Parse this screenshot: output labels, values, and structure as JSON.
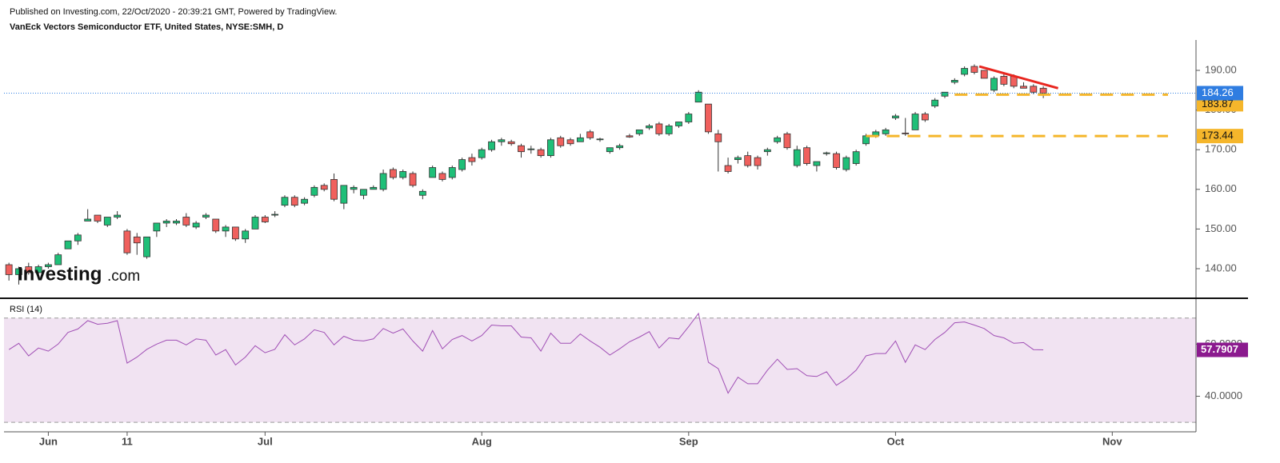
{
  "chart_data": [
    {
      "type": "candlestick",
      "subtitle": "Published on Investing.com, 22/Oct/2020 - 20:39:21 GMT, Powered by TradingView.",
      "title": "VanEck Vectors Semiconductor ETF, United States, NYSE:SMH, D",
      "watermark": {
        "name": "Investing",
        "suffix": ".com"
      },
      "categories": [
        null,
        null,
        null,
        null,
        "Jun",
        null,
        null,
        null,
        null,
        null,
        null,
        null,
        "11",
        null,
        null,
        null,
        null,
        null,
        null,
        null,
        null,
        null,
        null,
        null,
        null,
        null,
        "Jul",
        null,
        null,
        null,
        null,
        null,
        null,
        null,
        null,
        null,
        null,
        null,
        null,
        null,
        null,
        null,
        null,
        null,
        null,
        null,
        null,
        null,
        "Aug",
        null,
        null,
        null,
        null,
        null,
        null,
        null,
        null,
        null,
        null,
        null,
        null,
        null,
        null,
        null,
        null,
        null,
        null,
        null,
        null,
        "Sep",
        null,
        null,
        null,
        null,
        null,
        null,
        null,
        null,
        null,
        null,
        null,
        null,
        null,
        null,
        null,
        null,
        null,
        null,
        null,
        null,
        "Oct",
        null,
        null,
        null,
        null,
        null,
        null,
        null,
        null,
        null,
        null,
        null,
        null,
        null,
        null,
        null,
        null,
        null,
        null,
        null,
        null,
        null,
        "Nov",
        null,
        null,
        null,
        null,
        null,
        null,
        null,
        null
      ],
      "open": [
        141,
        138.5,
        140.5,
        139,
        140.5,
        141,
        145,
        147,
        152,
        153.5,
        151,
        153,
        149.5,
        148,
        143,
        149.5,
        151.5,
        151.5,
        153,
        150.5,
        153,
        152.5,
        149.5,
        150.5,
        147.5,
        150,
        153,
        153.5,
        156,
        158,
        156.5,
        158.5,
        161,
        162.5,
        156.5,
        160,
        158.5,
        160,
        160,
        165,
        163,
        164,
        158.5,
        163,
        164,
        163,
        165,
        168,
        168,
        170,
        172,
        172,
        171,
        170,
        170,
        168.5,
        173,
        172.5,
        172,
        174.5,
        172.5,
        169.5,
        170.5,
        173.5,
        174,
        175.5,
        176.5,
        174,
        176,
        177,
        182,
        181.5,
        174,
        166,
        167.5,
        168.5,
        168,
        169.5,
        172,
        174,
        166,
        170.5,
        166,
        169,
        169,
        165,
        166.5,
        171.5,
        173.5,
        174,
        178,
        174.2,
        175,
        179,
        181,
        183.5,
        187,
        189,
        191,
        190,
        185,
        188.5,
        188.5,
        186,
        186,
        185.5,
        null,
        null,
        null,
        null,
        null,
        null,
        null,
        null,
        null,
        null,
        null,
        null,
        null,
        null,
        null
      ],
      "high": [
        141.5,
        140.5,
        141.5,
        141,
        141.5,
        144,
        147,
        149,
        155,
        153.5,
        153,
        154.5,
        150,
        149,
        148,
        151.5,
        152.5,
        152.5,
        154,
        152,
        154,
        152.5,
        151,
        150.5,
        150,
        153.5,
        153.5,
        154.5,
        158.5,
        158.5,
        158,
        161,
        161.5,
        164,
        161,
        161,
        160,
        161,
        165,
        165.5,
        165,
        164.5,
        160,
        166,
        164.5,
        166,
        168,
        169,
        170.5,
        172.5,
        173,
        172.5,
        171.5,
        171,
        170.5,
        173,
        173.5,
        173,
        174,
        175,
        173,
        170.5,
        171.5,
        174,
        175,
        176.5,
        177,
        176.5,
        177,
        179.5,
        185,
        181.5,
        175,
        168,
        168.5,
        169.5,
        168.5,
        170.5,
        173.5,
        174.5,
        171,
        171,
        167,
        169.5,
        169.5,
        168.5,
        170,
        174,
        175,
        175.5,
        179,
        178,
        179.5,
        179.5,
        183,
        184.5,
        188,
        191,
        191.5,
        190,
        188.5,
        189,
        189,
        187,
        186.5,
        186,
        null,
        null,
        null,
        null,
        null,
        null,
        null,
        null,
        null,
        null,
        null,
        null,
        null,
        null,
        null
      ],
      "low": [
        137,
        136,
        138.5,
        138,
        140,
        141,
        145,
        146,
        152,
        151.5,
        150.5,
        152.5,
        143.5,
        143.5,
        142.5,
        148,
        150.5,
        151,
        150.5,
        150,
        152.5,
        149,
        148,
        147,
        146.5,
        150,
        151.5,
        153,
        155.5,
        155.5,
        156,
        158,
        159.5,
        157,
        155,
        159,
        157.5,
        160,
        159.5,
        162.5,
        162.5,
        160.5,
        157.5,
        163,
        162,
        162.5,
        164.5,
        166,
        167.5,
        169.5,
        171,
        171,
        168,
        169,
        168,
        168,
        170.5,
        171,
        172,
        172.5,
        172,
        169,
        170,
        173,
        173.5,
        175,
        173.5,
        173.5,
        175.5,
        176.5,
        182,
        174,
        164.5,
        164,
        166.5,
        165.5,
        165,
        168.5,
        171.5,
        170,
        165.5,
        166,
        164.5,
        168.5,
        165,
        164.5,
        166,
        171,
        173,
        173.5,
        177.5,
        173.5,
        175,
        177,
        180.5,
        183,
        186.5,
        188.5,
        189,
        188,
        184.5,
        186,
        185.5,
        185.5,
        184,
        183,
        null,
        null,
        null,
        null,
        null,
        null,
        null,
        null,
        null,
        null,
        null,
        null,
        null,
        null,
        null
      ],
      "close": [
        138.5,
        140,
        139,
        140.5,
        141,
        143.5,
        147,
        148.5,
        152.5,
        152,
        153,
        153.5,
        144,
        146.5,
        148,
        151.5,
        152,
        152,
        151,
        151.5,
        153.5,
        149.5,
        150.5,
        147.5,
        149.5,
        153,
        151.8,
        153.7,
        158,
        156,
        157.5,
        160.5,
        160,
        157.5,
        161,
        160.5,
        160,
        160.5,
        164,
        163,
        164.5,
        161,
        159.5,
        165.5,
        162.5,
        165.5,
        167.5,
        167,
        170,
        172,
        172.5,
        171.5,
        169.5,
        170.2,
        168.5,
        172.5,
        171,
        171.5,
        173,
        173,
        172.7,
        170.5,
        171,
        173.2,
        175,
        176,
        174,
        176,
        177,
        179,
        184.5,
        174.5,
        172,
        164.5,
        168,
        166,
        166,
        170,
        173,
        170.5,
        170,
        166.5,
        167,
        169.2,
        165.5,
        168,
        169.5,
        173.5,
        174.5,
        175,
        178.5,
        174,
        179,
        177.5,
        182.5,
        184.5,
        187.5,
        190.5,
        189.5,
        188,
        188,
        186.5,
        186,
        185.5,
        184.5,
        184.26,
        null,
        null,
        null,
        null,
        null,
        null,
        null,
        null,
        null,
        null,
        null,
        null,
        null,
        null,
        null
      ],
      "colors": {
        "up": "#1fbf78",
        "down": "#f0605d"
      },
      "last_line_color": "#2f7de1",
      "levels": [
        {
          "value": 183.87,
          "color": "#f5b62b"
        },
        {
          "value": 173.44,
          "color": "#f5b62b"
        }
      ],
      "trendline": {
        "values": [
          191,
          185.5
        ],
        "color": "#e8261f"
      },
      "ylim": [
        132.74,
        197.66
      ],
      "yticks": [
        {
          "value": 140,
          "label": "140.00"
        },
        {
          "value": 150,
          "label": "150.00"
        },
        {
          "value": 160,
          "label": "160.00"
        },
        {
          "value": 170,
          "label": "170.00"
        },
        {
          "value": 180,
          "label": "180.00"
        },
        {
          "value": 190,
          "label": "190.00"
        }
      ]
    },
    {
      "type": "line",
      "title": "RSI (14)",
      "values": [
        57.9,
        60.3,
        55.5,
        58.5,
        57.3,
        60,
        64.5,
        65.8,
        69,
        67.6,
        68,
        69,
        52.7,
        55,
        58,
        60,
        61.5,
        61.5,
        59.7,
        62,
        61.5,
        55.8,
        57.9,
        52,
        55,
        59.4,
        56.7,
        58,
        63.6,
        59.7,
        62,
        65.5,
        64.5,
        59.7,
        63,
        61.5,
        61.2,
        62,
        66,
        64.2,
        65.8,
        61.2,
        57.3,
        65.2,
        58.2,
        61.8,
        63.3,
        61.2,
        63.3,
        67.3,
        67,
        67,
        62.7,
        62.4,
        57.3,
        64.2,
        60.3,
        60.3,
        63.9,
        61.2,
        58.8,
        55.8,
        58.2,
        60.9,
        62.7,
        64.8,
        58.5,
        62.4,
        62,
        66.7,
        71.8,
        53,
        50.6,
        41.2,
        47.3,
        44.8,
        44.8,
        50,
        54.2,
        50.3,
        50.6,
        47.9,
        47.6,
        49.4,
        44.2,
        46.7,
        50,
        55.5,
        56.4,
        56.4,
        61.2,
        53,
        59.7,
        57.9,
        61.8,
        64.5,
        68.2,
        68.5,
        67.3,
        66,
        63.3,
        62.4,
        60.3,
        60.6,
        57.9,
        57.7907,
        null,
        null,
        null,
        null,
        null,
        null,
        null,
        null,
        null,
        null,
        null,
        null,
        null,
        null,
        null
      ],
      "color": "#a04fb5",
      "label_color": "#8b1a8e",
      "band": [
        30,
        70
      ],
      "band_color": "#f1e3f2",
      "ylim": [
        26.36,
        76.97
      ],
      "yticks": [
        {
          "value": 40,
          "label": "40.0000"
        },
        {
          "value": 60,
          "label": "60.0000"
        }
      ]
    }
  ]
}
